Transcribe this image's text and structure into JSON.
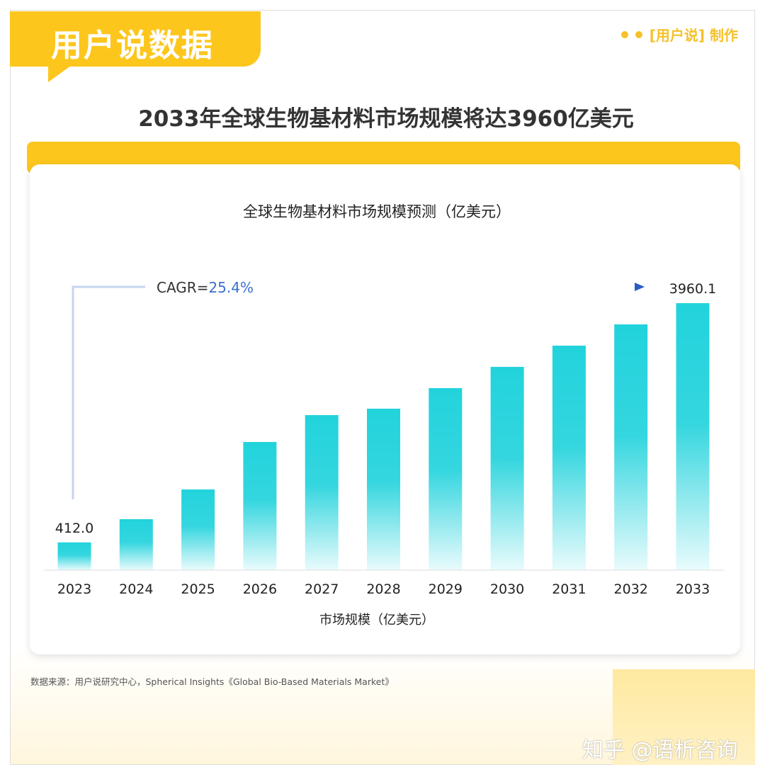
{
  "badge": "用户说数据",
  "maker": "[用户说] 制作",
  "headline": "2033年全球生物基材料市场规模将达3960亿美元",
  "source": "数据来源：用户说研究中心，Spherical Insights《Global Bio-Based Materials Market》",
  "watermark": "知乎 @语析咨询",
  "colors": {
    "accent": "#fcc61d",
    "bar_top": "#22d3dc",
    "arrow": "#2a5bc4"
  },
  "chart_data": {
    "type": "bar",
    "title": "全球生物基材料市场规模预测（亿美元）",
    "xlabel": "市场规模（亿美元）",
    "ylabel": "",
    "categories": [
      "2023",
      "2024",
      "2025",
      "2026",
      "2027",
      "2028",
      "2029",
      "2030",
      "2031",
      "2032",
      "2033"
    ],
    "values": [
      412.0,
      756,
      1197,
      1901,
      2300,
      2395,
      2700,
      3015,
      3330,
      3645,
      3960.1
    ],
    "data_labels": {
      "first": "412.0",
      "last": "3960.1"
    },
    "annotation": {
      "prefix": "CAGR=",
      "value": "25.4%"
    },
    "ylim": [
      0,
      3960.1
    ],
    "grid": false
  }
}
